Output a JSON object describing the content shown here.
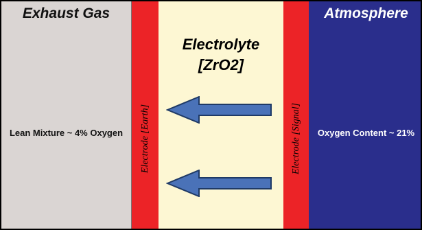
{
  "exhaust": {
    "title": "Exhaust Gas",
    "text": "Lean Mixture ~ 4% Oxygen"
  },
  "electrolyte": {
    "title_line1": "Electrolyte",
    "title_line2": "[ZrO2]"
  },
  "electrode_earth": {
    "label": "Electrode [Earth]"
  },
  "electrode_signal": {
    "label": "Electrode [Signal]"
  },
  "atmosphere": {
    "title": "Atmosphere",
    "text": "Oxygen Content ~ 21%"
  },
  "colors": {
    "exhaust_bg": "#dad5d3",
    "electrode": "#ec2327",
    "electrolyte_bg": "#fdf7d3",
    "atmosphere_bg": "#2a2e8c",
    "arrow_fill": "#4a72b8",
    "arrow_stroke": "#1f3a66"
  },
  "arrows": [
    {
      "direction": "left",
      "meaning": "oxygen-ion-flow"
    },
    {
      "direction": "left",
      "meaning": "oxygen-ion-flow"
    }
  ]
}
